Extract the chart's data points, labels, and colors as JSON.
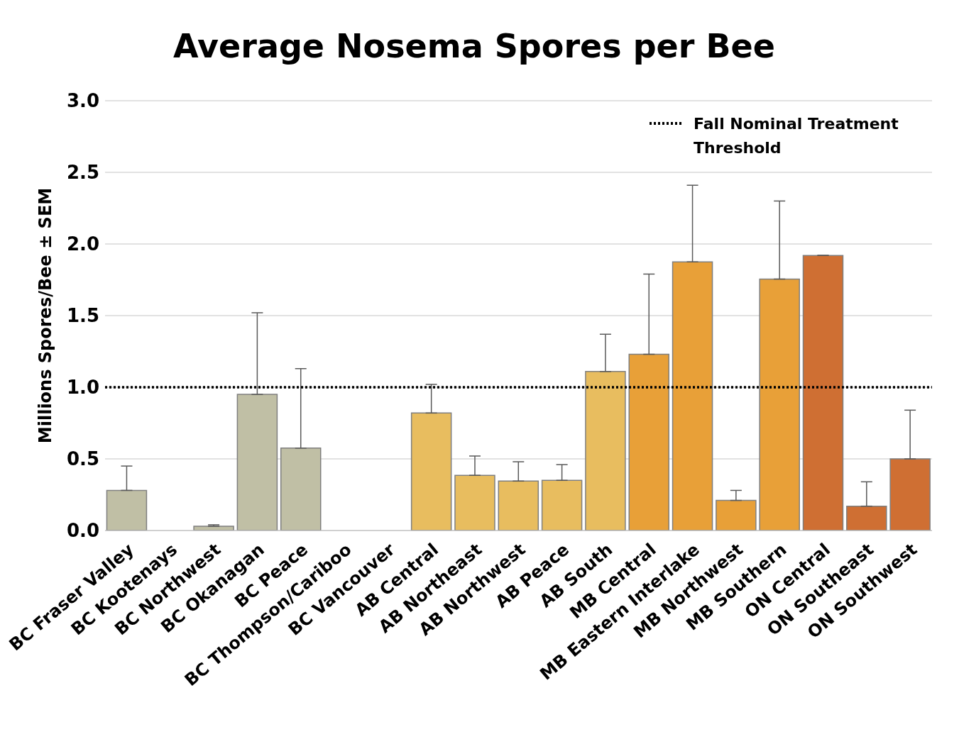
{
  "chart_data": {
    "type": "bar",
    "title": "Average Nosema Spores per Bee",
    "ylabel": "Millions Spores/Bee ± SEM",
    "categories": [
      "BC Fraser Valley",
      "BC Kootenays",
      "BC Northwest",
      "BC Okanagan",
      "BC Peace",
      "BC Thompson/Cariboo",
      "BC Vancouver",
      "AB Central",
      "AB Northeast",
      "AB Northwest",
      "AB Peace",
      "AB South",
      "MB Central",
      "MB Eastern Interlake",
      "MB Northwest",
      "MB Southern",
      "ON Central",
      "ON Southeast",
      "ON Southwest"
    ],
    "values": [
      0.28,
      0,
      0.03,
      0.95,
      0.575,
      0,
      0,
      0.82,
      0.385,
      0.345,
      0.35,
      1.11,
      1.23,
      1.875,
      0.21,
      1.755,
      1.92,
      0.17,
      0.5
    ],
    "errors": [
      [
        0.28,
        0.45
      ],
      null,
      [
        0.03,
        0.04
      ],
      [
        0.95,
        1.52
      ],
      [
        0.575,
        1.13
      ],
      null,
      null,
      [
        0.82,
        1.02
      ],
      [
        0.385,
        0.52
      ],
      [
        0.345,
        0.48
      ],
      [
        0.35,
        0.46
      ],
      [
        1.11,
        1.37
      ],
      [
        1.23,
        1.79
      ],
      [
        1.875,
        2.41
      ],
      [
        0.21,
        0.28
      ],
      [
        1.755,
        2.3
      ],
      [
        1.92,
        1.92
      ],
      [
        0.17,
        0.34
      ],
      [
        0.5,
        0.84
      ]
    ],
    "colors": [
      "#c0bfa5",
      "#c0bfa5",
      "#c0bfa5",
      "#c0bfa5",
      "#c0bfa5",
      "#c0bfa5",
      "#c0bfa5",
      "#e8bd5f",
      "#e8bd5f",
      "#e8bd5f",
      "#e8bd5f",
      "#e8bd5f",
      "#e8a038",
      "#e8a038",
      "#e8a038",
      "#e8a038",
      "#cf6f33",
      "#cf6f33",
      "#cf6f33"
    ],
    "ylim": [
      0,
      3
    ],
    "yticks": [
      {
        "value": 0,
        "label": "0.0"
      },
      {
        "value": 0.5,
        "label": "0.5"
      },
      {
        "value": 1,
        "label": "1.0"
      },
      {
        "value": 1.5,
        "label": "1.5"
      },
      {
        "value": 2,
        "label": "2.0"
      },
      {
        "value": 2.5,
        "label": "2.5"
      },
      {
        "value": 3,
        "label": "3.0"
      }
    ],
    "grid": "y",
    "ref_lines": [
      {
        "axis": "y",
        "value": 1,
        "label": "Fall Nominal Treatment Threshold",
        "color": "#000000",
        "line_style": "dotted"
      }
    ]
  }
}
